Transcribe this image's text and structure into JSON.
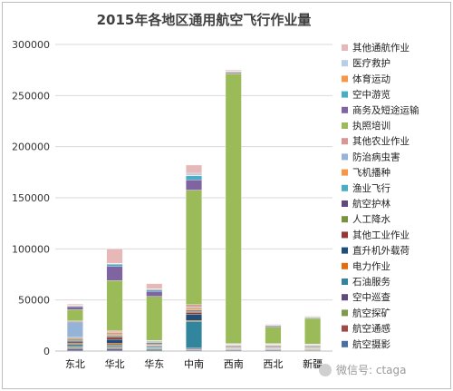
{
  "chart_data": {
    "type": "bar",
    "stacked": true,
    "title": "2015年各地区通用航空飞行作业量",
    "xlabel": "",
    "ylabel": "",
    "ylim": [
      0,
      300000
    ],
    "yticks": [
      "0",
      "50000",
      "100000",
      "150000",
      "200000",
      "250000",
      "300000"
    ],
    "grid": true,
    "legend_position": "right",
    "categories": [
      "东北",
      "华北",
      "华东",
      "中南",
      "西南",
      "西北",
      "新疆"
    ],
    "series": [
      {
        "name": "航空摄影",
        "color": "#4a6fa5",
        "values": [
          2000,
          2000,
          1500,
          1000,
          1000,
          1000,
          500
        ]
      },
      {
        "name": "航空通感",
        "color": "#a04a48",
        "values": [
          1000,
          1000,
          500,
          500,
          500,
          500,
          500
        ]
      },
      {
        "name": "航空探矿",
        "color": "#7e9a4d",
        "values": [
          1000,
          1000,
          1000,
          500,
          500,
          500,
          500
        ]
      },
      {
        "name": "空中巡查",
        "color": "#5e4b7a",
        "values": [
          1000,
          1000,
          500,
          1000,
          500,
          500,
          500
        ]
      },
      {
        "name": "石油服务",
        "color": "#31859c",
        "values": [
          2000,
          1000,
          1000,
          26000,
          500,
          500,
          500
        ]
      },
      {
        "name": "电力作业",
        "color": "#e46c0a",
        "values": [
          1000,
          1500,
          500,
          1000,
          500,
          500,
          500
        ]
      },
      {
        "name": "直升机外载荷",
        "color": "#1f4e79",
        "values": [
          1000,
          4000,
          500,
          6000,
          500,
          500,
          500
        ]
      },
      {
        "name": "其他工业作业",
        "color": "#953735",
        "values": [
          1000,
          2000,
          500,
          2000,
          500,
          500,
          500
        ]
      },
      {
        "name": "人工降水",
        "color": "#77933c",
        "values": [
          1000,
          1000,
          1000,
          1000,
          500,
          500,
          500
        ]
      },
      {
        "name": "航空护林",
        "color": "#604a7b",
        "values": [
          1000,
          1000,
          1000,
          1000,
          500,
          500,
          500
        ]
      },
      {
        "name": "渔业飞行",
        "color": "#4bacc6",
        "values": [
          500,
          500,
          500,
          500,
          500,
          500,
          500
        ]
      },
      {
        "name": "飞机播种",
        "color": "#f79646",
        "values": [
          1000,
          2000,
          500,
          2000,
          500,
          500,
          500
        ]
      },
      {
        "name": "防治病虫害",
        "color": "#95b3d7",
        "values": [
          15000,
          1000,
          1000,
          1000,
          500,
          500,
          500
        ]
      },
      {
        "name": "其他农业作业",
        "color": "#d99694",
        "values": [
          1000,
          1000,
          500,
          2000,
          500,
          500,
          500
        ]
      },
      {
        "name": "执照培训",
        "color": "#9bbb59",
        "values": [
          11000,
          49000,
          43000,
          112000,
          264000,
          16000,
          25000
        ]
      },
      {
        "name": "商务及短途运输",
        "color": "#8064a2",
        "values": [
          3000,
          14000,
          5000,
          10000,
          1000,
          1000,
          500
        ]
      },
      {
        "name": "空中游览",
        "color": "#4bacc6",
        "values": [
          500,
          2000,
          1500,
          4000,
          500,
          500,
          500
        ]
      },
      {
        "name": "体育运动",
        "color": "#f79646",
        "values": [
          500,
          500,
          500,
          500,
          500,
          500,
          500
        ]
      },
      {
        "name": "医疗救护",
        "color": "#b9cde5",
        "values": [
          500,
          500,
          500,
          2000,
          500,
          500,
          500
        ]
      },
      {
        "name": "其他通航作业",
        "color": "#e6b9b8",
        "values": [
          1000,
          14000,
          5000,
          8000,
          1000,
          500,
          500
        ]
      }
    ]
  },
  "watermark": "微信号: ctaga"
}
